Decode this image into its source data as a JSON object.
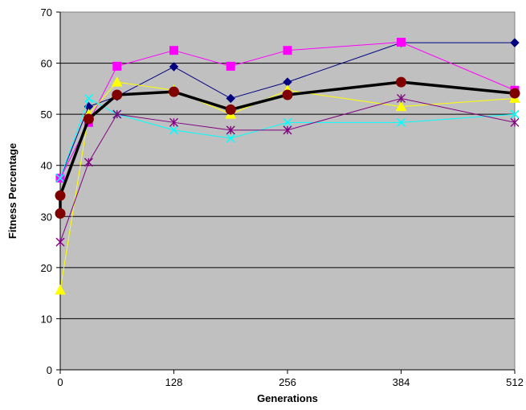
{
  "chart_data": {
    "type": "line",
    "title": "",
    "xlabel": "Generations",
    "ylabel": "Fitness Percentage",
    "xlim": [
      0,
      512
    ],
    "ylim": [
      0,
      70
    ],
    "x_ticks": [
      0,
      128,
      256,
      384,
      512
    ],
    "y_ticks": [
      0,
      10,
      20,
      30,
      40,
      50,
      60,
      70
    ],
    "grid": true,
    "legend": "none",
    "plot_background": "#c0c0c0",
    "series": [
      {
        "color": "#000080",
        "marker": "diamond",
        "line_width": 1,
        "points": [
          [
            0,
            37.5
          ],
          [
            32,
            51.5
          ],
          [
            64,
            53.5
          ],
          [
            128,
            59.3
          ],
          [
            192,
            53.1
          ],
          [
            256,
            56.3
          ],
          [
            384,
            64.0
          ],
          [
            512,
            64.0
          ]
        ]
      },
      {
        "color": "#ff00ff",
        "marker": "square",
        "line_width": 1,
        "points": [
          [
            0,
            37.5
          ],
          [
            32,
            48.4
          ],
          [
            64,
            59.4
          ],
          [
            128,
            62.5
          ],
          [
            192,
            59.4
          ],
          [
            256,
            62.5
          ],
          [
            384,
            64.1
          ],
          [
            512,
            54.7
          ]
        ]
      },
      {
        "color": "#ffff00",
        "marker": "triangle",
        "line_width": 1,
        "points": [
          [
            0,
            15.6
          ],
          [
            32,
            50.0
          ],
          [
            64,
            56.3
          ],
          [
            128,
            54.7
          ],
          [
            192,
            50.0
          ],
          [
            256,
            54.7
          ],
          [
            384,
            51.5
          ],
          [
            512,
            53.1
          ]
        ]
      },
      {
        "color": "#00ffff",
        "marker": "x",
        "line_width": 1,
        "points": [
          [
            0,
            37.5
          ],
          [
            32,
            53.1
          ],
          [
            64,
            50.0
          ],
          [
            128,
            46.9
          ],
          [
            192,
            45.3
          ],
          [
            256,
            48.4
          ],
          [
            384,
            48.4
          ],
          [
            512,
            50.0
          ]
        ]
      },
      {
        "color": "#800080",
        "marker": "star",
        "line_width": 1,
        "points": [
          [
            0,
            25.0
          ],
          [
            32,
            40.6
          ],
          [
            64,
            50.0
          ],
          [
            128,
            48.4
          ],
          [
            192,
            46.9
          ],
          [
            256,
            46.9
          ],
          [
            384,
            53.1
          ],
          [
            512,
            48.4
          ]
        ]
      },
      {
        "color": "#800000",
        "marker": "circle",
        "line_width": 3.5,
        "points": [
          [
            0,
            30.6
          ],
          [
            0,
            34.1
          ],
          [
            32,
            49.1
          ],
          [
            64,
            53.8
          ],
          [
            128,
            54.4
          ],
          [
            192,
            50.9
          ],
          [
            256,
            53.8
          ],
          [
            384,
            56.3
          ],
          [
            512,
            54.1
          ]
        ]
      }
    ]
  }
}
